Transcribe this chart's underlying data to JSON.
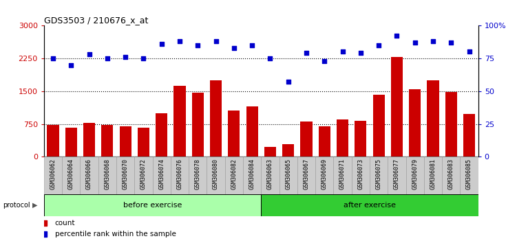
{
  "title": "GDS3503 / 210676_x_at",
  "samples": [
    "GSM306062",
    "GSM306064",
    "GSM306066",
    "GSM306068",
    "GSM306070",
    "GSM306072",
    "GSM306074",
    "GSM306076",
    "GSM306078",
    "GSM306080",
    "GSM306082",
    "GSM306084",
    "GSM306063",
    "GSM306065",
    "GSM306067",
    "GSM306069",
    "GSM306071",
    "GSM306073",
    "GSM306075",
    "GSM306077",
    "GSM306079",
    "GSM306081",
    "GSM306083",
    "GSM306085"
  ],
  "counts": [
    720,
    660,
    770,
    720,
    700,
    660,
    1000,
    1620,
    1470,
    1750,
    1050,
    1150,
    230,
    280,
    800,
    700,
    850,
    820,
    1420,
    2280,
    1550,
    1740,
    1480,
    980
  ],
  "percentiles": [
    75,
    70,
    78,
    75,
    76,
    75,
    86,
    88,
    85,
    88,
    83,
    85,
    75,
    57,
    79,
    73,
    80,
    79,
    85,
    92,
    87,
    88,
    87,
    80
  ],
  "before_count": 12,
  "after_count": 12,
  "bar_color": "#cc0000",
  "dot_color": "#0000cc",
  "before_bg": "#aaffaa",
  "after_bg": "#33cc33",
  "xlabel_bg": "#cccccc",
  "ylim_left": [
    0,
    3000
  ],
  "ylim_right": [
    0,
    100
  ],
  "yticks_left": [
    0,
    750,
    1500,
    2250,
    3000
  ],
  "yticks_right": [
    0,
    25,
    50,
    75,
    100
  ],
  "ytick_labels_right": [
    "0",
    "25",
    "50",
    "75",
    "100%"
  ],
  "grid_values": [
    750,
    1500,
    2250
  ],
  "legend_count_label": "count",
  "legend_percentile_label": "percentile rank within the sample"
}
